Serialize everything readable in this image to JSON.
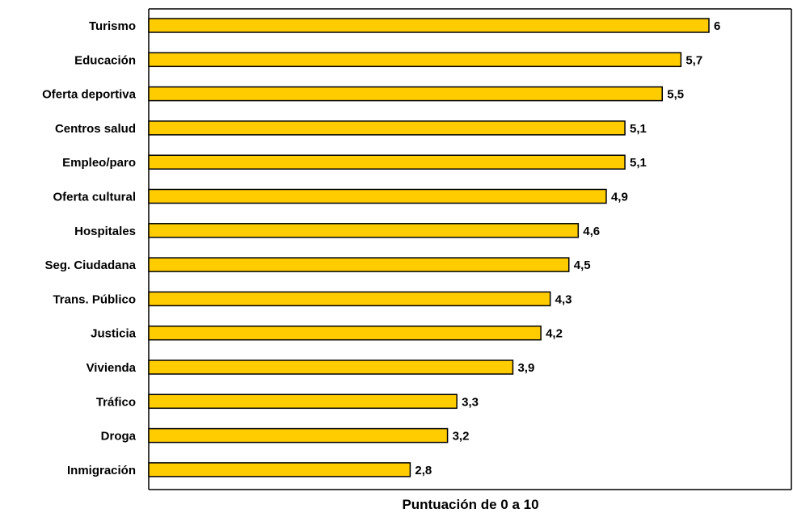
{
  "chart_data": {
    "type": "bar",
    "orientation": "horizontal",
    "categories": [
      "Turismo",
      "Educación",
      "Oferta deportiva",
      "Centros salud",
      "Empleo/paro",
      "Oferta cultural",
      "Hospitales",
      "Seg. Ciudadana",
      "Trans. Público",
      "Justicia",
      "Vivienda",
      "Tráfico",
      "Droga",
      "Inmigración"
    ],
    "values": [
      6,
      5.7,
      5.5,
      5.1,
      5.1,
      4.9,
      4.6,
      4.5,
      4.3,
      4.2,
      3.9,
      3.3,
      3.2,
      2.8
    ],
    "value_labels": [
      "6",
      "5,7",
      "5,5",
      "5,1",
      "5,1",
      "4,9",
      "4,6",
      "4,5",
      "4,3",
      "4,2",
      "3,9",
      "3,3",
      "3,2",
      "2,8"
    ],
    "xlabel": "Puntuación de 0 a 10",
    "ylabel": "",
    "xlim": [
      0,
      10
    ],
    "grid": false,
    "legend": "none",
    "bar_color": "#FFCC00",
    "bar_edge_color": "#000000"
  }
}
